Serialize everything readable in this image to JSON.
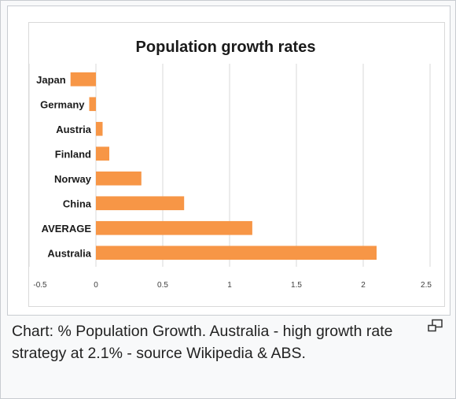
{
  "caption": "Chart: % Population Growth. Australia - high growth rate strategy at 2.1% - source Wikipedia & ABS.",
  "icons": {
    "magnify": "magnify-clip-icon"
  },
  "colors": {
    "bar": "#F79646",
    "grid": "#d9d9d9",
    "text": "#222222"
  },
  "chart_data": {
    "type": "bar",
    "orientation": "horizontal",
    "title": "Population growth rates",
    "categories": [
      "Japan",
      "Germany",
      "Austria",
      "Finland",
      "Norway",
      "China",
      "AVERAGE",
      "Australia"
    ],
    "values": [
      -0.19,
      -0.05,
      0.05,
      0.1,
      0.34,
      0.66,
      1.17,
      2.1
    ],
    "xlim": [
      -0.5,
      2.5
    ],
    "xticks": [
      "-0.5",
      "0",
      "0.5",
      "1",
      "1.5",
      "2",
      "2.5"
    ],
    "xlabel": "",
    "ylabel": "",
    "grid": true,
    "legend": false
  }
}
